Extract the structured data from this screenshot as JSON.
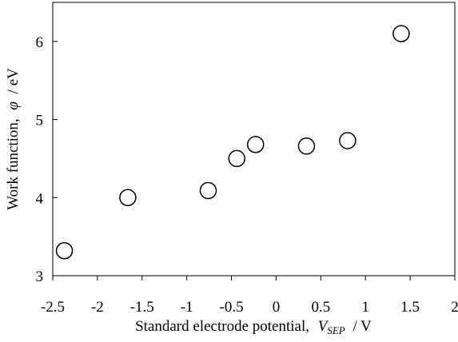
{
  "chart_data": {
    "type": "scatter",
    "title": "",
    "xlabel": {
      "prefix": "Standard electrode potential,",
      "var": "V",
      "sub": "SEP",
      "suffix": "/ V"
    },
    "ylabel": {
      "prefix": "Work function,",
      "var": "φ",
      "suffix": "/ eV"
    },
    "xlim": [
      -2.5,
      2
    ],
    "ylim": [
      3,
      6.5
    ],
    "xticks": [
      "-2.5",
      "-2",
      "-1.5",
      "-1",
      "-0.5",
      "0",
      "0.5",
      "1",
      "1.5",
      "2"
    ],
    "yticks": [
      "3",
      "4",
      "5",
      "6"
    ],
    "grid": false,
    "marker": "open-circle",
    "points": [
      {
        "x": -2.37,
        "y": 3.32
      },
      {
        "x": -1.66,
        "y": 4.0
      },
      {
        "x": -0.76,
        "y": 4.09
      },
      {
        "x": -0.44,
        "y": 4.5
      },
      {
        "x": -0.23,
        "y": 4.68
      },
      {
        "x": 0.34,
        "y": 4.66
      },
      {
        "x": 0.8,
        "y": 4.73
      },
      {
        "x": 1.4,
        "y": 6.1
      }
    ]
  }
}
